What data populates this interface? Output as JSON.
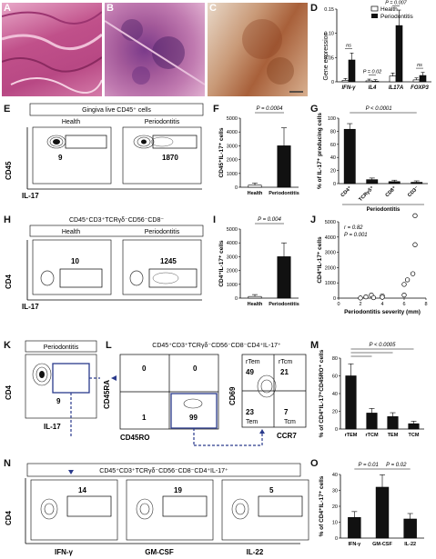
{
  "panels": {
    "A": "A",
    "B": "B",
    "C": "C",
    "D": "D",
    "E": "E",
    "F": "F",
    "G": "G",
    "H": "H",
    "I": "I",
    "J": "J",
    "K": "K",
    "L": "L",
    "M": "M",
    "N": "N",
    "O": "O"
  },
  "colors": {
    "he_bg": "#c04f88",
    "he_light": "#e6a2c5",
    "ihc_bg": "#c99a78",
    "bar_black": "#111111",
    "bar_white": "#ffffff",
    "gate_blue": "#2a3a8c"
  },
  "D": {
    "ylabel": "Gene expression",
    "legend": [
      "Health",
      "Periodontitis"
    ],
    "ylim": [
      0,
      0.15
    ],
    "yticks": [
      "0",
      "0.05",
      "0.10",
      "0.15"
    ],
    "genes": [
      "IFN-γ",
      "IL4",
      "IL17A",
      "FOXP3"
    ],
    "health": [
      0.003,
      0.002,
      0.012,
      0.004
    ],
    "periodontitis": [
      0.045,
      0.001,
      0.116,
      0.013
    ],
    "stats": [
      "ns",
      "P = 0.02",
      "P = 0.007",
      "ns"
    ]
  },
  "E": {
    "title": "Gingiva live CD45⁺ cells",
    "plots": [
      {
        "label": "Health",
        "count": "9"
      },
      {
        "label": "Periodontitis",
        "count": "1870"
      }
    ],
    "ylabel": "CD45",
    "xlabel": "IL-17"
  },
  "F": {
    "ylabel": "CD45⁺IL-17⁺ cells",
    "pvalue": "P = 0.0004",
    "yticks": [
      "0",
      "1000",
      "2000",
      "3000",
      "4000",
      "5000"
    ],
    "ylim": [
      0,
      5000
    ],
    "categories": [
      "Health",
      "Periodontitis"
    ],
    "values": [
      150,
      3000
    ]
  },
  "G": {
    "ylabel": "% of IL-17⁺ producing cells",
    "pvalue": "P < 0.0001",
    "yticks": [
      "0",
      "20",
      "40",
      "60",
      "80",
      "100"
    ],
    "ylim": [
      0,
      100
    ],
    "categories": [
      "CD4⁺",
      "TCRγδ⁺",
      "CD8⁺",
      "CD3⁻"
    ],
    "values": [
      83,
      6,
      3,
      2
    ],
    "group": "Periodontitis"
  },
  "H": {
    "title": "CD45⁺CD3⁺TCRγδ⁻CD56⁻CD8⁻",
    "plots": [
      {
        "label": "Health",
        "count": "10"
      },
      {
        "label": "Periodontitis",
        "count": "1245"
      }
    ],
    "ylabel": "CD4",
    "xlabel": "IL-17"
  },
  "I": {
    "ylabel": "CD4⁺IL-17⁺ cells",
    "pvalue": "P = 0.004",
    "yticks": [
      "0",
      "1000",
      "2000",
      "3000",
      "4000",
      "5000"
    ],
    "ylim": [
      0,
      5000
    ],
    "categories": [
      "Health",
      "Periodontitis"
    ],
    "values": [
      120,
      3000
    ]
  },
  "J": {
    "ylabel": "CD4⁺IL-17⁺ cells",
    "xlabel": "Periodontitis severity (mm)",
    "stats": [
      "r = 0.82",
      "P = 0.001"
    ],
    "yticks": [
      "0",
      "1000",
      "2000",
      "3000",
      "4000",
      "5000"
    ],
    "xticks": [
      "0",
      "2",
      "4",
      "6",
      "8"
    ],
    "xlim": [
      0,
      8
    ],
    "ylim": [
      0,
      5000
    ],
    "points": [
      [
        2,
        10
      ],
      [
        2.5,
        80
      ],
      [
        3,
        200
      ],
      [
        3.2,
        30
      ],
      [
        4,
        150
      ],
      [
        4,
        60
      ],
      [
        6,
        200
      ],
      [
        6,
        900
      ],
      [
        6.3,
        1200
      ],
      [
        6.8,
        1600
      ],
      [
        7,
        3500
      ],
      [
        7,
        5400
      ]
    ]
  },
  "K": {
    "title": "Periodontitis",
    "count": "9",
    "ylabel": "CD4",
    "xlabel": "IL-17"
  },
  "L": {
    "title": "CD45⁺CD3⁺TCRγδ⁻CD56⁻CD8⁻CD4⁺IL-17⁺",
    "quadrants": [
      "0",
      "0",
      "1",
      "99"
    ],
    "ylabel": "CD45RA",
    "xlabel": "CD45RO",
    "p2": {
      "ylabel": "CD69",
      "xlabel": "CCR7",
      "quad_labels": [
        "rTem",
        "rTcm",
        "Tem",
        "Tcm"
      ],
      "quads": [
        "49",
        "21",
        "23",
        "7"
      ]
    }
  },
  "M": {
    "ylabel": "% of CD4⁺IL-17⁺CD45RO⁺ cells",
    "pvalue": "P < 0.0005",
    "yticks": [
      "0",
      "20",
      "40",
      "60",
      "80"
    ],
    "ylim": [
      0,
      80
    ],
    "categories": [
      "rTEM",
      "rTCM",
      "TEM",
      "TCM"
    ],
    "values": [
      60,
      18,
      14,
      6
    ]
  },
  "N": {
    "title": "CD45⁺CD3⁺TCRγδ⁻CD56⁻CD8⁻CD4⁺IL-17⁺",
    "plots": [
      {
        "xlabel": "IFN-γ",
        "count": "14"
      },
      {
        "xlabel": "GM-CSF",
        "count": "19"
      },
      {
        "xlabel": "IL-22",
        "count": "5"
      }
    ],
    "ylabel": "CD4"
  },
  "O": {
    "ylabel": "% of CD4⁺IL-17⁺ cells",
    "pvalues": [
      "P = 0.01",
      "P = 0.02"
    ],
    "yticks": [
      "0",
      "10",
      "20",
      "30",
      "40"
    ],
    "ylim": [
      0,
      40
    ],
    "categories": [
      "IFN-γ",
      "GM-CSF",
      "IL-22"
    ],
    "values": [
      13,
      32,
      12
    ]
  },
  "chart_data": [
    {
      "type": "bar",
      "title": "",
      "categories": [
        "IFN-γ",
        "IL4",
        "IL17A",
        "FOXP3"
      ],
      "series": [
        {
          "name": "Health",
          "values": [
            0.003,
            0.002,
            0.012,
            0.004
          ]
        },
        {
          "name": "Periodontitis",
          "values": [
            0.045,
            0.001,
            0.116,
            0.013
          ]
        }
      ],
      "ylabel": "Gene expression",
      "ylim": [
        0,
        0.15
      ]
    },
    {
      "type": "bar",
      "categories": [
        "Health",
        "Periodontitis"
      ],
      "values": [
        150,
        3000
      ],
      "ylabel": "CD45⁺IL-17⁺ cells",
      "ylim": [
        0,
        5000
      ]
    },
    {
      "type": "bar",
      "categories": [
        "CD4⁺",
        "TCRγδ⁺",
        "CD8⁺",
        "CD3⁻"
      ],
      "values": [
        83,
        6,
        3,
        2
      ],
      "ylabel": "% of IL-17⁺ producing cells",
      "ylim": [
        0,
        100
      ]
    },
    {
      "type": "bar",
      "categories": [
        "Health",
        "Periodontitis"
      ],
      "values": [
        120,
        3000
      ],
      "ylabel": "CD4⁺IL-17⁺ cells",
      "ylim": [
        0,
        5000
      ]
    },
    {
      "type": "scatter",
      "xlabel": "Periodontitis severity (mm)",
      "ylabel": "CD4⁺IL-17⁺ cells",
      "xlim": [
        0,
        8
      ],
      "ylim": [
        0,
        5000
      ]
    },
    {
      "type": "bar",
      "categories": [
        "rTEM",
        "rTCM",
        "TEM",
        "TCM"
      ],
      "values": [
        60,
        18,
        14,
        6
      ],
      "ylabel": "% of CD4⁺IL-17⁺CD45RO⁺ cells",
      "ylim": [
        0,
        80
      ]
    },
    {
      "type": "bar",
      "categories": [
        "IFN-γ",
        "GM-CSF",
        "IL-22"
      ],
      "values": [
        13,
        32,
        12
      ],
      "ylabel": "% of CD4⁺IL-17⁺ cells",
      "ylim": [
        0,
        40
      ]
    }
  ]
}
